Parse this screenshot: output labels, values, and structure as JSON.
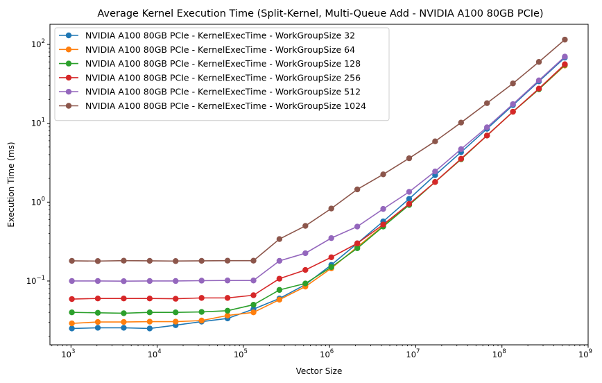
{
  "chart_data": {
    "type": "line",
    "title": "Average Kernel Execution Time (Split-Kernel, Multi-Queue Add - NVIDIA A100 80GB PCIe)",
    "xlabel": "Vector Size",
    "ylabel": "Execution Time (ms)",
    "xscale": "log",
    "yscale": "log",
    "xlim": [
      570,
      1000000000
    ],
    "ylim": [
      0.0155,
      180
    ],
    "x_ticks": [
      {
        "value": 1000,
        "base": "10",
        "exp": "3"
      },
      {
        "value": 10000,
        "base": "10",
        "exp": "4"
      },
      {
        "value": 100000,
        "base": "10",
        "exp": "5"
      },
      {
        "value": 1000000,
        "base": "10",
        "exp": "6"
      },
      {
        "value": 10000000,
        "base": "10",
        "exp": "7"
      },
      {
        "value": 100000000,
        "base": "10",
        "exp": "8"
      },
      {
        "value": 1000000000,
        "base": "10",
        "exp": "9"
      }
    ],
    "y_ticks": [
      {
        "value": 0.1,
        "base": "10",
        "exp": "−1"
      },
      {
        "value": 1,
        "base": "10",
        "exp": "0"
      },
      {
        "value": 10,
        "base": "10",
        "exp": "1"
      },
      {
        "value": 100,
        "base": "10",
        "exp": "2"
      }
    ],
    "legend_position": "top-left",
    "x": [
      1024,
      2048,
      4096,
      8192,
      16384,
      32768,
      65536,
      131072,
      262144,
      524288,
      1048576,
      2097152,
      4194304,
      8388608,
      16777216,
      33554432,
      67108864,
      134217728,
      268435456,
      536870912
    ],
    "series": [
      {
        "name": "NVIDIA A100 80GB PCIe - KernelExecTime - WorkGroupSize 32",
        "color": "#1f77b4",
        "values": [
          0.025,
          0.0255,
          0.0255,
          0.025,
          0.0275,
          0.0305,
          0.0335,
          0.044,
          0.06,
          0.09,
          0.16,
          0.3,
          0.57,
          1.1,
          2.2,
          4.3,
          8.5,
          17,
          34,
          68
        ]
      },
      {
        "name": "NVIDIA A100 80GB PCIe - KernelExecTime - WorkGroupSize 64",
        "color": "#ff7f0e",
        "values": [
          0.029,
          0.0302,
          0.0302,
          0.0305,
          0.0305,
          0.0315,
          0.0365,
          0.04,
          0.058,
          0.085,
          0.145,
          0.27,
          0.5,
          0.93,
          1.8,
          3.5,
          7.0,
          14,
          27,
          54
        ]
      },
      {
        "name": "NVIDIA A100 80GB PCIe - KernelExecTime - WorkGroupSize 128",
        "color": "#2ca02c",
        "values": [
          0.04,
          0.0395,
          0.039,
          0.04,
          0.04,
          0.0405,
          0.042,
          0.05,
          0.077,
          0.093,
          0.15,
          0.26,
          0.49,
          0.92,
          1.8,
          3.5,
          7.0,
          14,
          27,
          55
        ]
      },
      {
        "name": "NVIDIA A100 80GB PCIe - KernelExecTime - WorkGroupSize 256",
        "color": "#d62728",
        "values": [
          0.059,
          0.06,
          0.06,
          0.06,
          0.0595,
          0.061,
          0.061,
          0.066,
          0.107,
          0.138,
          0.2,
          0.3,
          0.52,
          0.95,
          1.8,
          3.55,
          7.0,
          14,
          27.5,
          56
        ]
      },
      {
        "name": "NVIDIA A100 80GB PCIe - KernelExecTime - WorkGroupSize 512",
        "color": "#9467bd",
        "values": [
          0.1,
          0.1,
          0.0995,
          0.1,
          0.1,
          0.101,
          0.1015,
          0.1015,
          0.18,
          0.225,
          0.35,
          0.49,
          0.82,
          1.35,
          2.45,
          4.7,
          8.9,
          17.5,
          35,
          70
        ]
      },
      {
        "name": "NVIDIA A100 80GB PCIe - KernelExecTime - WorkGroupSize 1024",
        "color": "#8c564b",
        "values": [
          0.18,
          0.179,
          0.181,
          0.18,
          0.179,
          0.18,
          0.181,
          0.181,
          0.34,
          0.5,
          0.83,
          1.45,
          2.25,
          3.6,
          5.9,
          10.2,
          18,
          32,
          60,
          115
        ]
      }
    ]
  }
}
